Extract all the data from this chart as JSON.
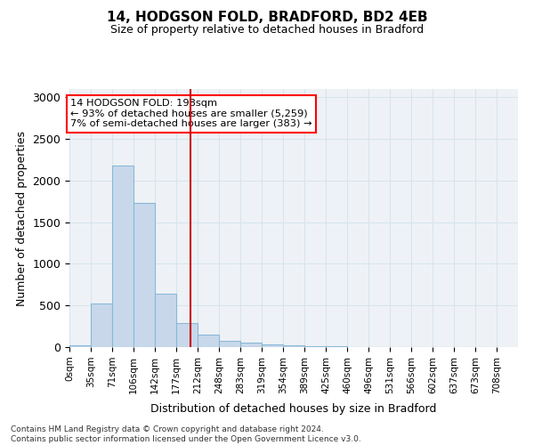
{
  "title1": "14, HODGSON FOLD, BRADFORD, BD2 4EB",
  "title2": "Size of property relative to detached houses in Bradford",
  "xlabel": "Distribution of detached houses by size in Bradford",
  "ylabel": "Number of detached properties",
  "bin_labels": [
    "0sqm",
    "35sqm",
    "71sqm",
    "106sqm",
    "142sqm",
    "177sqm",
    "212sqm",
    "248sqm",
    "283sqm",
    "319sqm",
    "354sqm",
    "389sqm",
    "425sqm",
    "460sqm",
    "496sqm",
    "531sqm",
    "566sqm",
    "602sqm",
    "637sqm",
    "673sqm",
    "708sqm"
  ],
  "bar_values": [
    25,
    520,
    2180,
    1730,
    640,
    290,
    155,
    80,
    50,
    30,
    20,
    15,
    10,
    5,
    3,
    2,
    2,
    1,
    1,
    0
  ],
  "bar_color": "#c8d8ea",
  "bar_edgecolor": "#89b8d8",
  "vline_color": "#cc0000",
  "vline_x": 198,
  "annotation_text_line1": "14 HODGSON FOLD: 198sqm",
  "annotation_text_line2": "← 93% of detached houses are smaller (5,259)",
  "annotation_text_line3": "7% of semi-detached houses are larger (383) →",
  "bin_width": 35,
  "ylim": [
    0,
    3100
  ],
  "yticks": [
    0,
    500,
    1000,
    1500,
    2000,
    2500,
    3000
  ],
  "grid_color": "#d8e4ec",
  "bg_color": "#eef2f6",
  "footer1": "Contains HM Land Registry data © Crown copyright and database right 2024.",
  "footer2": "Contains public sector information licensed under the Open Government Licence v3.0."
}
